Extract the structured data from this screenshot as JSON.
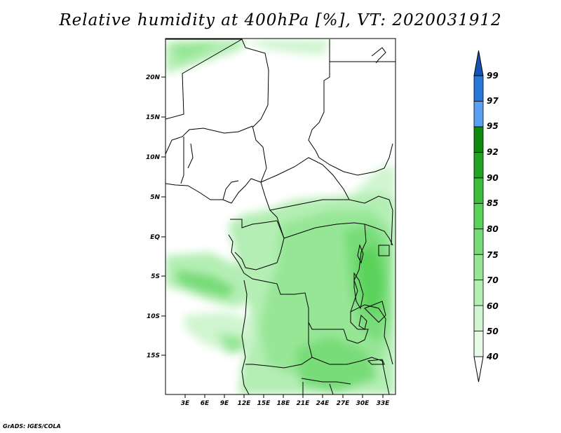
{
  "title": "Relative humidity at 400hPa [%], VT: 2020031912",
  "footer": "GrADS: IGES/COLA",
  "map": {
    "variable": "Relative humidity",
    "level": "400hPa",
    "units": "%",
    "valid_time": "2020031912",
    "lat_labels": [
      "20N",
      "15N",
      "10N",
      "5N",
      "EQ",
      "5S",
      "10S",
      "15S"
    ],
    "lon_labels": [
      "3E",
      "6E",
      "9E",
      "12E",
      "15E",
      "18E",
      "21E",
      "24E",
      "27E",
      "30E",
      "33E"
    ]
  },
  "colorbar": {
    "levels": [
      "40",
      "50",
      "60",
      "70",
      "75",
      "80",
      "85",
      "90",
      "92",
      "95",
      "97",
      "99"
    ],
    "colors": [
      "#ffffff",
      "#e6fae6",
      "#d0f5d0",
      "#b4eeb4",
      "#96e696",
      "#78dc78",
      "#5ad25a",
      "#3cbe3c",
      "#23a323",
      "#0f8a0f",
      "#5aa0f0",
      "#2878dc",
      "#1455b4"
    ]
  }
}
